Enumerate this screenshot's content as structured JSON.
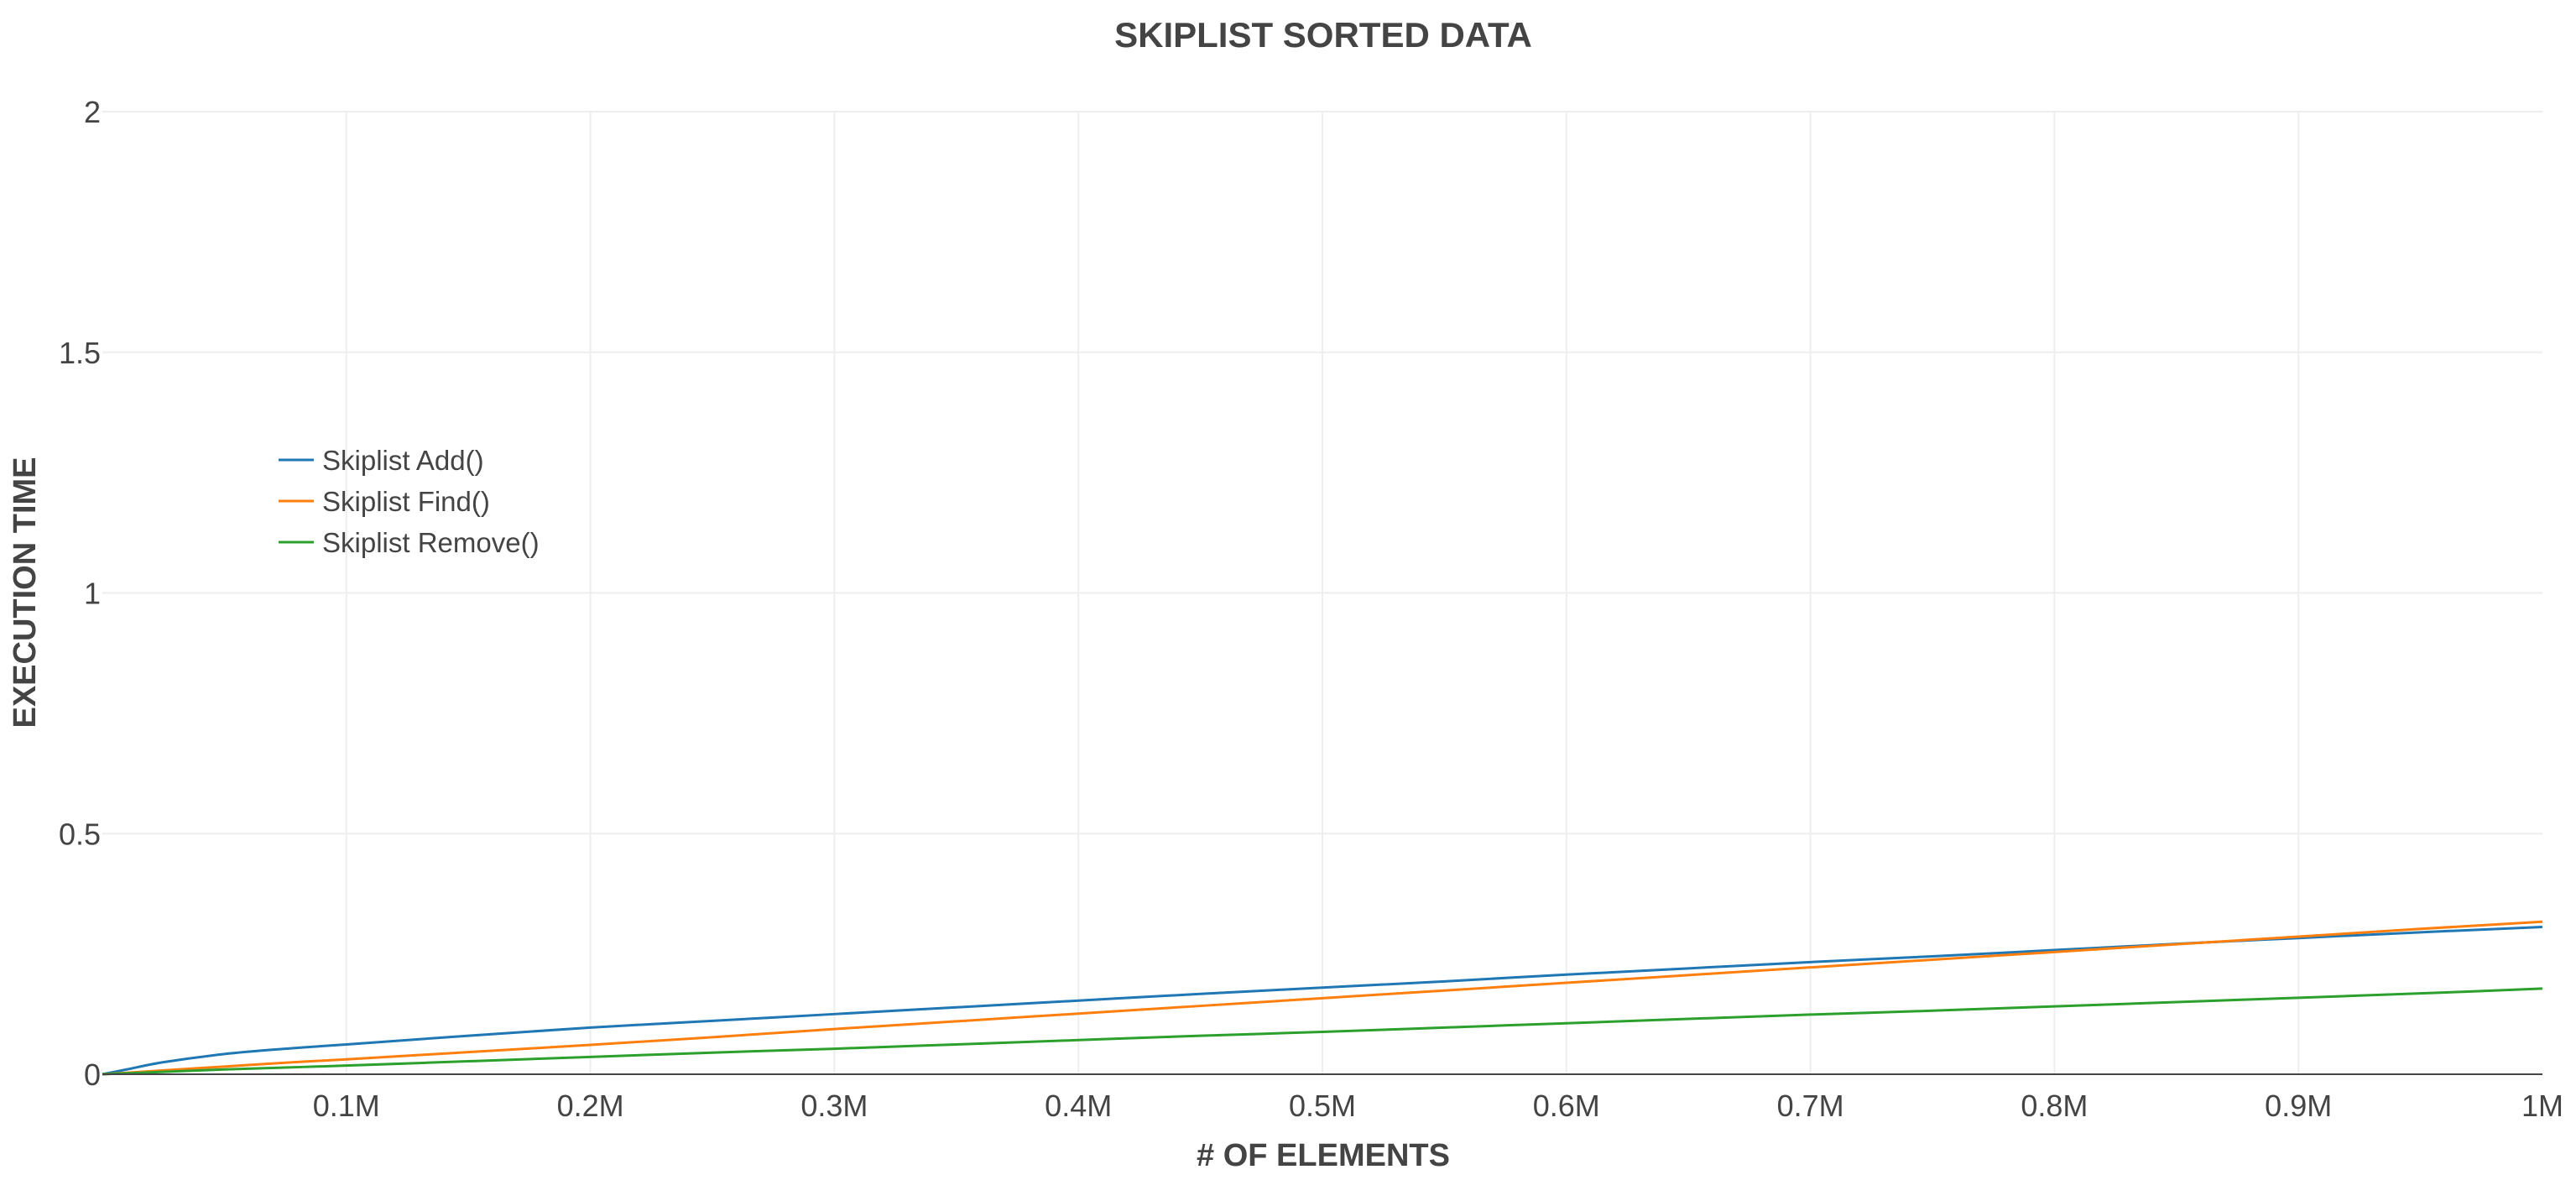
{
  "chart_data": {
    "type": "line",
    "title": "SKIPLIST SORTED DATA",
    "xlabel": "# OF ELEMENTS",
    "ylabel": "EXECUTION TIME",
    "xlim": [
      0,
      1000000
    ],
    "ylim": [
      0,
      2
    ],
    "x_ticks": [
      {
        "value": 100000,
        "label": "0.1M"
      },
      {
        "value": 200000,
        "label": "0.2M"
      },
      {
        "value": 300000,
        "label": "0.3M"
      },
      {
        "value": 400000,
        "label": "0.4M"
      },
      {
        "value": 500000,
        "label": "0.5M"
      },
      {
        "value": 600000,
        "label": "0.6M"
      },
      {
        "value": 700000,
        "label": "0.7M"
      },
      {
        "value": 800000,
        "label": "0.8M"
      },
      {
        "value": 900000,
        "label": "0.9M"
      },
      {
        "value": 1000000,
        "label": "1M"
      }
    ],
    "y_ticks": [
      {
        "value": 0,
        "label": "0"
      },
      {
        "value": 0.5,
        "label": "0.5"
      },
      {
        "value": 1,
        "label": "1"
      },
      {
        "value": 1.5,
        "label": "1.5"
      },
      {
        "value": 2,
        "label": "2"
      }
    ],
    "grid": true,
    "legend_position": "top-left",
    "x": [
      0,
      10000,
      25000,
      50000,
      75000,
      100000,
      150000,
      200000,
      250000,
      300000,
      350000,
      400000,
      450000,
      500000,
      550000,
      600000,
      650000,
      700000,
      750000,
      800000,
      850000,
      900000,
      950000,
      1000000
    ],
    "series": [
      {
        "name": "Skiplist Add()",
        "color": "#1f77b4",
        "values": [
          0,
          0.01,
          0.025,
          0.042,
          0.053,
          0.062,
          0.08,
          0.097,
          0.111,
          0.125,
          0.139,
          0.153,
          0.167,
          0.18,
          0.193,
          0.207,
          0.22,
          0.233,
          0.245,
          0.258,
          0.271,
          0.283,
          0.295,
          0.306
        ]
      },
      {
        "name": "Skiplist Find()",
        "color": "#ff7f0e",
        "values": [
          0,
          0.003,
          0.008,
          0.016,
          0.024,
          0.031,
          0.046,
          0.061,
          0.077,
          0.094,
          0.11,
          0.126,
          0.142,
          0.158,
          0.174,
          0.19,
          0.206,
          0.222,
          0.238,
          0.254,
          0.27,
          0.286,
          0.302,
          0.317
        ]
      },
      {
        "name": "Skiplist Remove()",
        "color": "#2ca02c",
        "values": [
          0,
          0.002,
          0.005,
          0.01,
          0.014,
          0.018,
          0.027,
          0.036,
          0.045,
          0.053,
          0.062,
          0.071,
          0.08,
          0.088,
          0.097,
          0.106,
          0.115,
          0.124,
          0.132,
          0.141,
          0.15,
          0.159,
          0.168,
          0.178
        ]
      }
    ]
  }
}
